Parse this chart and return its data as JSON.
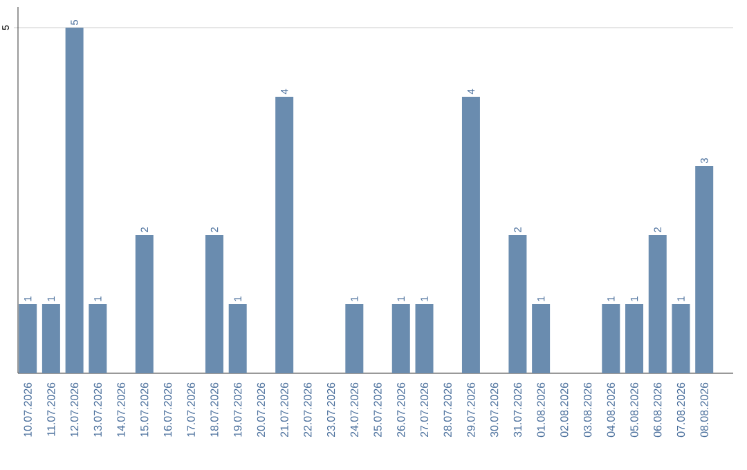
{
  "chart_data": {
    "type": "bar",
    "categories": [
      "10.07.2026",
      "11.07.2026",
      "12.07.2026",
      "13.07.2026",
      "14.07.2026",
      "15.07.2026",
      "16.07.2026",
      "17.07.2026",
      "18.07.2026",
      "19.07.2026",
      "20.07.2026",
      "21.07.2026",
      "22.07.2026",
      "23.07.2026",
      "24.07.2026",
      "25.07.2026",
      "26.07.2026",
      "27.07.2026",
      "28.07.2026",
      "29.07.2026",
      "30.07.2026",
      "31.07.2026",
      "01.08.2026",
      "02.08.2026",
      "03.08.2026",
      "04.08.2026",
      "05.08.2026",
      "06.08.2026",
      "07.08.2026",
      "08.08.2026"
    ],
    "values": [
      1,
      1,
      5,
      1,
      0,
      2,
      0,
      0,
      2,
      1,
      0,
      4,
      0,
      0,
      1,
      0,
      1,
      1,
      0,
      4,
      0,
      2,
      1,
      0,
      0,
      1,
      1,
      2,
      1,
      3
    ],
    "value_labels": [
      "1",
      "1",
      "5",
      "1",
      null,
      "2",
      null,
      null,
      "2",
      "1",
      null,
      "4",
      null,
      null,
      "1",
      null,
      "1",
      "1",
      null,
      "4",
      null,
      "2",
      "1",
      null,
      null,
      "1",
      "1",
      "2",
      "1",
      "3"
    ],
    "color": "#6a8caf",
    "ylim": [
      0,
      5.3
    ],
    "yticks": [
      5
    ],
    "grid": "y"
  }
}
